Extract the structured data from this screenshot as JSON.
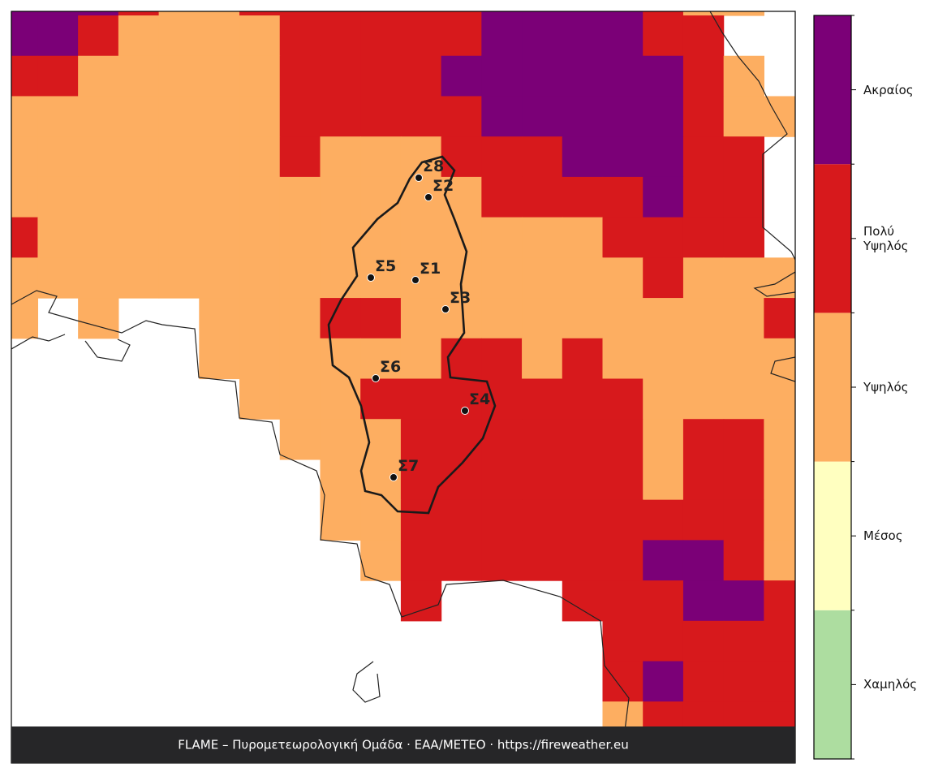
{
  "map": {
    "cells": [
      "55543344444455554330",
      "55433334444455554400",
      "44333334444555555430",
      "33333334444455555433",
      "33333334333444555440",
      "33333333333344445440",
      "43333333333333344440",
      "33333333333333334333",
      "30300333443333333334",
      "00000333333443433333",
      "00000033344444443333",
      "00000003334444443443",
      "00000000334444443443",
      "00000000334444444443",
      "00000000034444445543",
      "00000000004000444554",
      "00000000000000044444",
      "00000000000000045444",
      "00000000000000034444",
      "00000000000000000000"
    ],
    "stations": [
      "Σ1",
      "Σ2",
      "Σ3",
      "Σ4",
      "Σ5",
      "Σ6",
      "Σ7",
      "Σ8"
    ]
  },
  "legend": {
    "levels": [
      {
        "label": "Χαμηλός",
        "color": "#addda0"
      },
      {
        "label": "Μέσος",
        "color": "#ffffc0"
      },
      {
        "label": "Υψηλός",
        "color": "#fdae61"
      },
      {
        "label": "Πολύ\nΥψηλός",
        "color": "#d7191c"
      },
      {
        "label": "Ακραίος",
        "color": "#7b0077"
      }
    ]
  },
  "footer": {
    "text": "FLAME – Πυρομετεωρολογική Ομάδα · ΕΑΑ/METEO · https://fireweather.eu"
  }
}
